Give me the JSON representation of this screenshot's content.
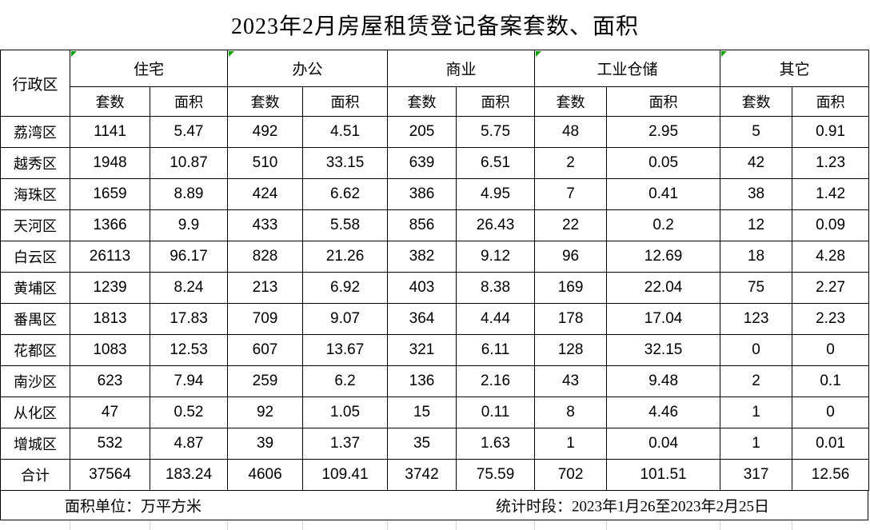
{
  "title": "2023年2月房屋租赁登记备案套数、面积",
  "table": {
    "corner_header": "行政区",
    "categories": [
      {
        "label": "住宅",
        "flag": true
      },
      {
        "label": "办公",
        "flag": true
      },
      {
        "label": "商业",
        "flag": false
      },
      {
        "label": "工业仓储",
        "flag": true
      },
      {
        "label": "其它",
        "flag": true
      }
    ],
    "sub_headers": {
      "count": "套数",
      "area": "面积"
    },
    "rows": [
      {
        "district": "荔湾区",
        "values": [
          "1141",
          "5.47",
          "492",
          "4.51",
          "205",
          "5.75",
          "48",
          "2.95",
          "5",
          "0.91"
        ]
      },
      {
        "district": "越秀区",
        "values": [
          "1948",
          "10.87",
          "510",
          "33.15",
          "639",
          "6.51",
          "2",
          "0.05",
          "42",
          "1.23"
        ]
      },
      {
        "district": "海珠区",
        "values": [
          "1659",
          "8.89",
          "424",
          "6.62",
          "386",
          "4.95",
          "7",
          "0.41",
          "38",
          "1.42"
        ]
      },
      {
        "district": "天河区",
        "values": [
          "1366",
          "9.9",
          "433",
          "5.58",
          "856",
          "26.43",
          "22",
          "0.2",
          "12",
          "0.09"
        ]
      },
      {
        "district": "白云区",
        "values": [
          "26113",
          "96.17",
          "828",
          "21.26",
          "382",
          "9.12",
          "96",
          "12.69",
          "18",
          "4.28"
        ]
      },
      {
        "district": "黄埔区",
        "values": [
          "1239",
          "8.24",
          "213",
          "6.92",
          "403",
          "8.38",
          "169",
          "22.04",
          "75",
          "2.27"
        ]
      },
      {
        "district": "番禺区",
        "values": [
          "1813",
          "17.83",
          "709",
          "9.07",
          "364",
          "4.44",
          "178",
          "17.04",
          "123",
          "2.23"
        ]
      },
      {
        "district": "花都区",
        "values": [
          "1083",
          "12.53",
          "607",
          "13.67",
          "321",
          "6.11",
          "128",
          "32.15",
          "0",
          "0"
        ]
      },
      {
        "district": "南沙区",
        "values": [
          "623",
          "7.94",
          "259",
          "6.2",
          "136",
          "2.16",
          "43",
          "9.48",
          "2",
          "0.1"
        ]
      },
      {
        "district": "从化区",
        "values": [
          "47",
          "0.52",
          "92",
          "1.05",
          "15",
          "0.11",
          "8",
          "4.46",
          "1",
          "0"
        ]
      },
      {
        "district": "增城区",
        "values": [
          "532",
          "4.87",
          "39",
          "1.37",
          "35",
          "1.63",
          "1",
          "0.04",
          "1",
          "0.01"
        ]
      },
      {
        "district": "合计",
        "values": [
          "37564",
          "183.24",
          "4606",
          "109.41",
          "3742",
          "75.59",
          "702",
          "101.51",
          "317",
          "12.56"
        ]
      }
    ]
  },
  "footer": {
    "area_unit": "面积单位：万平方米",
    "period": "统计时段：2023年1月26至2023年2月25日"
  },
  "colors": {
    "text": "#000000",
    "border": "#000000",
    "flag_green": "#00A000",
    "gridline_gray": "#d4d4d4",
    "background": "#ffffff"
  }
}
